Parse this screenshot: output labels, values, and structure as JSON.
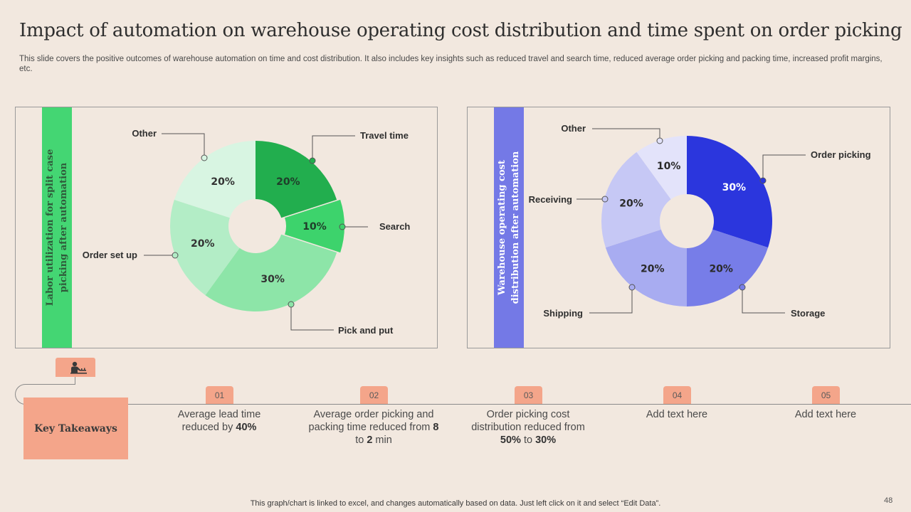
{
  "title": "Impact of automation on warehouse operating cost distribution and time spent on order picking",
  "subtitle": "This slide covers the positive outcomes of warehouse automation on time and cost distribution. It also includes key insights such as reduced travel and search time, reduced average order picking and packing time,  increased profit margins, etc.",
  "chart_data": [
    {
      "type": "pie",
      "style": "donut",
      "title": "Labor utilization for split case picking after automation",
      "categories": [
        "Travel time",
        "Search",
        "Pick and put",
        "Order set up",
        "Other"
      ],
      "values": [
        20,
        10,
        30,
        20,
        20
      ],
      "value_labels": [
        "20%",
        "10%",
        "30%",
        "20%",
        "20%"
      ],
      "colors": [
        "#22AE4E",
        "#3DD36C",
        "#8DE5A8",
        "#B3EDC6",
        "#D8F5E2"
      ],
      "label_colors": [
        "#1f3d2a",
        "#1f3d2a",
        "#333333",
        "#333333",
        "#333333"
      ]
    },
    {
      "type": "pie",
      "style": "donut",
      "title": "Warehouse operating cost distribution after automation",
      "categories": [
        "Order picking",
        "Storage",
        "Shipping",
        "Receiving",
        "Other"
      ],
      "values": [
        30,
        20,
        20,
        20,
        10
      ],
      "value_labels": [
        "30%",
        "20%",
        "20%",
        "20%",
        "10%"
      ],
      "colors": [
        "#2B36DD",
        "#777DE8",
        "#A8ACF1",
        "#C6C8F5",
        "#E3E3FA"
      ],
      "label_colors": [
        "#ffffff",
        "#2a2a2a",
        "#2a2a2a",
        "#2a2a2a",
        "#2a2a2a"
      ]
    }
  ],
  "panels": {
    "left_bar_title": "Labor utilization for split case picking after automation",
    "right_bar_title": "Warehouse operating cost distribution after automation",
    "left_bar_color": "#44D673",
    "right_bar_color": "#7479E6",
    "left_bar_text_color": "#2f5a3a",
    "right_bar_text_color": "#ffffff"
  },
  "takeaways": {
    "heading": "Key Takeaways",
    "icon": "presenter-icon",
    "steps": [
      {
        "num": "01",
        "parts": [
          [
            "Average lead time reduced by ",
            false
          ],
          [
            "40%",
            true
          ]
        ]
      },
      {
        "num": "02",
        "parts": [
          [
            "Average order picking and packing time reduced from ",
            false
          ],
          [
            "8",
            true
          ],
          [
            " to ",
            false
          ],
          [
            "2",
            true
          ],
          [
            " min",
            false
          ]
        ]
      },
      {
        "num": "03",
        "parts": [
          [
            "Order picking cost distribution reduced from ",
            false
          ],
          [
            "50%",
            true
          ],
          [
            " to ",
            false
          ],
          [
            "30%",
            true
          ]
        ]
      },
      {
        "num": "04",
        "parts": [
          [
            "Add text here",
            false
          ]
        ]
      },
      {
        "num": "05",
        "parts": [
          [
            "Add text here",
            false
          ]
        ]
      }
    ]
  },
  "footer": "This graph/chart is linked to excel,  and changes automatically based on data. Just left click on it and select “Edit Data”.",
  "page_number": "48"
}
